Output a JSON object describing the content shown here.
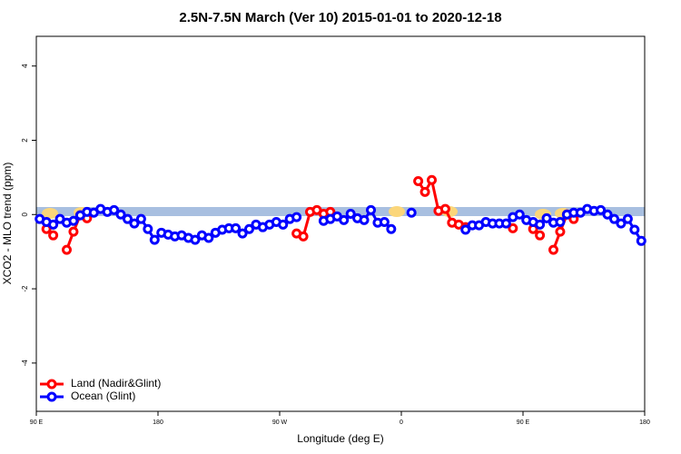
{
  "chart_data": {
    "type": "line",
    "title": "2.5N-7.5N March (Ver 10)   2015-01-01 to 2020-12-18",
    "x_label": "Longitude (deg E)",
    "y_label": "XCO2 - MLO trend (ppm)",
    "xlim": [
      90,
      540
    ],
    "xticks": [
      {
        "value": 90,
        "label": "90 E"
      },
      {
        "value": 180,
        "label": "180"
      },
      {
        "value": 270,
        "label": "90 W"
      },
      {
        "value": 360,
        "label": "0"
      },
      {
        "value": 450,
        "label": "90 E"
      },
      {
        "value": 540,
        "label": "180"
      }
    ],
    "ylim": [
      -5.3,
      4.8
    ],
    "yticks": [
      -4,
      -2,
      0,
      2,
      4
    ],
    "legend": "bottom-left",
    "x": [
      92.5,
      97.5,
      102.5,
      107.5,
      112.5,
      117.5,
      122.5,
      127.5,
      132.5,
      137.5,
      142.5,
      147.5,
      152.5,
      157.5,
      162.5,
      167.5,
      172.5,
      177.5,
      182.5,
      187.5,
      192.5,
      197.5,
      202.5,
      207.5,
      212.5,
      217.5,
      222.5,
      227.5,
      232.5,
      237.5,
      242.5,
      247.5,
      252.5,
      257.5,
      262.5,
      267.5,
      272.5,
      277.5,
      282.5,
      287.5,
      292.5,
      297.5,
      302.5,
      307.5,
      312.5,
      317.5,
      322.5,
      327.5,
      332.5,
      337.5,
      342.5,
      347.5,
      352.5,
      357.5,
      362.5,
      367.5,
      372.5,
      377.5,
      382.5,
      387.5,
      392.5,
      397.5,
      402.5,
      407.5,
      412.5,
      417.5,
      422.5,
      427.5,
      432.5,
      437.5,
      442.5,
      447.5,
      452.5,
      457.5,
      462.5,
      467.5,
      472.5,
      477.5,
      482.5,
      487.5,
      492.5,
      497.5,
      502.5,
      507.5,
      512.5,
      517.5,
      522.5,
      527.5,
      532.5,
      537.5
    ],
    "series": [
      {
        "name": "Land (Nadir&Glint)",
        "color": "#ff0000",
        "values": [
          null,
          -0.39,
          -0.56,
          null,
          -0.95,
          -0.46,
          -0.02,
          -0.1,
          null,
          null,
          null,
          null,
          null,
          null,
          null,
          null,
          null,
          null,
          null,
          null,
          null,
          null,
          null,
          null,
          null,
          null,
          null,
          null,
          null,
          null,
          null,
          null,
          null,
          null,
          null,
          null,
          null,
          null,
          -0.51,
          -0.59,
          0.07,
          0.12,
          0.02,
          0.07,
          null,
          null,
          null,
          null,
          null,
          null,
          null,
          null,
          null,
          null,
          null,
          null,
          0.9,
          0.61,
          0.93,
          0.1,
          0.15,
          -0.22,
          -0.27,
          -0.34,
          null,
          null,
          null,
          null,
          null,
          null,
          -0.37,
          null,
          null,
          -0.39,
          -0.56,
          null,
          -0.95,
          -0.46,
          0,
          -0.12,
          null,
          null,
          null,
          null,
          null,
          null,
          null,
          null,
          null,
          null
        ]
      },
      {
        "name": "Ocean (Glint)",
        "color": "#0000ff",
        "values": [
          -0.12,
          -0.2,
          -0.27,
          -0.12,
          -0.22,
          -0.17,
          -0.02,
          0.07,
          0.05,
          0.15,
          0.07,
          0.12,
          0,
          -0.12,
          -0.24,
          -0.12,
          -0.39,
          -0.68,
          -0.49,
          -0.54,
          -0.59,
          -0.56,
          -0.63,
          -0.68,
          -0.56,
          -0.63,
          -0.49,
          -0.41,
          -0.37,
          -0.37,
          -0.51,
          -0.39,
          -0.27,
          -0.34,
          -0.27,
          -0.2,
          -0.27,
          -0.12,
          -0.07,
          null,
          null,
          null,
          -0.17,
          -0.12,
          -0.05,
          -0.15,
          0.02,
          -0.1,
          -0.15,
          0.12,
          -0.22,
          -0.2,
          -0.39,
          null,
          null,
          0.05,
          null,
          null,
          null,
          null,
          null,
          null,
          null,
          -0.41,
          -0.29,
          -0.29,
          -0.2,
          -0.24,
          -0.24,
          -0.24,
          -0.07,
          0,
          -0.15,
          -0.2,
          -0.27,
          -0.1,
          -0.22,
          -0.2,
          0,
          0.05,
          0.05,
          0.15,
          0.1,
          0.12,
          0,
          -0.12,
          -0.24,
          -0.12,
          -0.41,
          -0.71
        ]
      }
    ]
  }
}
